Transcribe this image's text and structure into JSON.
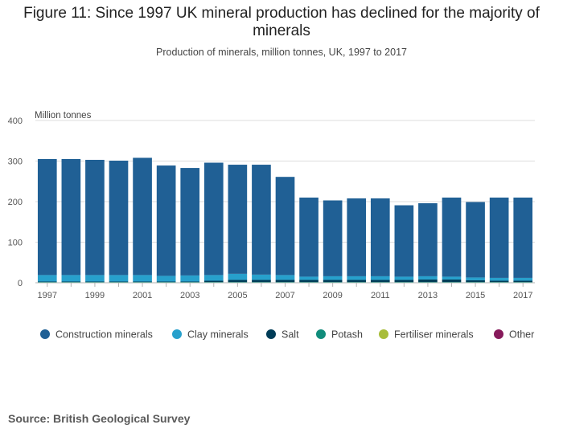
{
  "chart_data": {
    "type": "bar",
    "stacked": true,
    "title": "Figure 11: Since 1997 UK mineral production has declined for the majority of minerals",
    "subtitle": "Production of minerals, million tonnes, UK, 1997 to 2017",
    "ylabel": "Million tonnes",
    "ylim": [
      0,
      400
    ],
    "yticks": [
      0,
      100,
      200,
      300,
      400
    ],
    "categories": [
      "1997",
      "1998",
      "1999",
      "2000",
      "2001",
      "2002",
      "2003",
      "2004",
      "2005",
      "2006",
      "2007",
      "2008",
      "2009",
      "2010",
      "2011",
      "2012",
      "2013",
      "2014",
      "2015",
      "2016",
      "2017"
    ],
    "xtick_labels": [
      "1997",
      "1999",
      "2001",
      "2003",
      "2005",
      "2007",
      "2009",
      "2011",
      "2013",
      "2015",
      "2017"
    ],
    "grid": true,
    "legend_position": "bottom",
    "series": [
      {
        "name": "Other",
        "color": "#871a5b",
        "values": [
          0.5,
          0.5,
          0.5,
          0.5,
          0.5,
          0.5,
          0.5,
          0.5,
          0.5,
          0.5,
          0.5,
          0.5,
          0.5,
          0.5,
          0.5,
          0.5,
          0.5,
          0.5,
          0.5,
          0.5,
          0.5
        ]
      },
      {
        "name": "Fertiliser minerals",
        "color": "#a8bd3a",
        "values": [
          0.5,
          0.5,
          0.5,
          0.5,
          0.5,
          0.5,
          0.5,
          0.5,
          0.5,
          0.5,
          0.5,
          0.5,
          0.5,
          0.5,
          0.5,
          0.5,
          0.5,
          0.5,
          0.5,
          0.5,
          0.5
        ]
      },
      {
        "name": "Potash",
        "color": "#118c7b",
        "values": [
          1,
          1,
          1,
          1,
          1,
          1,
          1,
          1,
          1,
          1,
          1,
          1,
          1,
          1,
          1,
          1,
          1,
          1,
          1,
          1,
          1
        ]
      },
      {
        "name": "Salt",
        "color": "#003c57",
        "values": [
          1,
          1,
          1,
          1,
          1,
          1,
          1,
          3,
          5,
          5,
          5,
          5,
          5,
          5,
          5,
          5,
          6,
          6,
          4,
          3,
          3
        ]
      },
      {
        "name": "Clay minerals",
        "color": "#27a0cc",
        "values": [
          16,
          16,
          16,
          16,
          16,
          14,
          15,
          14,
          15,
          13,
          12,
          8,
          9,
          9,
          9,
          8,
          8,
          7,
          7,
          7,
          7
        ]
      },
      {
        "name": "Construction minerals",
        "color": "#206095",
        "values": [
          286,
          286,
          284,
          282,
          289,
          272,
          265,
          277,
          269,
          271,
          242,
          195,
          187,
          192,
          192,
          176,
          180,
          195,
          186,
          198,
          198
        ]
      }
    ]
  },
  "source": "Source: British Geological Survey"
}
